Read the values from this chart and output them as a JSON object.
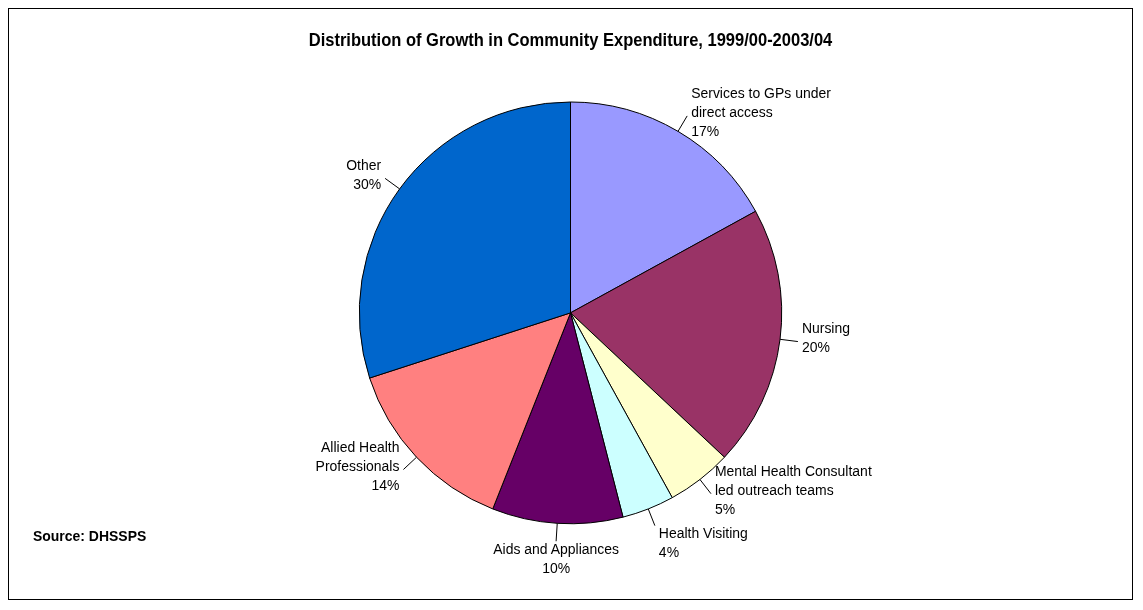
{
  "chart_data": {
    "type": "pie",
    "title": "Distribution of Growth in Community Expenditure, 1999/00-2003/04",
    "categories": [
      "Services to GPs under direct access",
      "Nursing",
      "Mental Health Consultant led outreach teams",
      "Health Visiting",
      "Aids and Appliances",
      "Allied Health Professionals",
      "Other"
    ],
    "values": [
      17,
      20,
      5,
      4,
      10,
      14,
      30
    ],
    "colors": [
      "#9999ff",
      "#993366",
      "#ffffcc",
      "#ccffff",
      "#660066",
      "#ff8080",
      "#0066cc"
    ],
    "value_labels": [
      "17%",
      "20%",
      "5%",
      "4%",
      "10%",
      "14%",
      "30%"
    ],
    "legend": false,
    "annotations": [
      "Source: DHSSPS"
    ]
  }
}
